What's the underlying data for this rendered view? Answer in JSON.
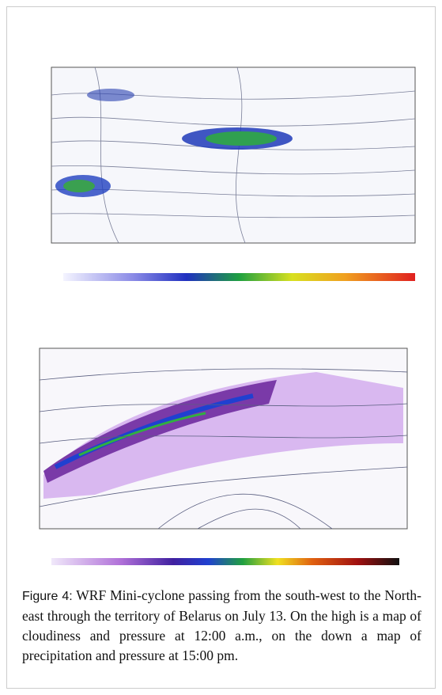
{
  "figure": {
    "label": "Figure 4:",
    "caption": "WRF Mini-cyclone passing from the south-west to the North-east through the territory of Belarus on July 13. On the high is a map of cloudiness and pressure at 12:00 a.m., on the down a map of precipitation and pressure at 15:00 pm."
  }
}
